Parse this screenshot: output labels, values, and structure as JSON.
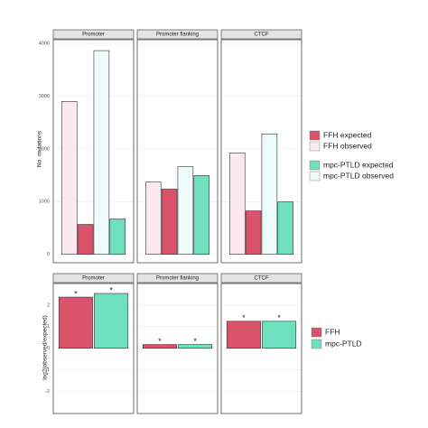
{
  "chart_data": [
    {
      "type": "bar",
      "y_label": "No. mutations",
      "facets": [
        "Promoter",
        "Promoter flanking",
        "CTCF"
      ],
      "series": [
        {
          "name": "FFH expected",
          "color": "#d9546a",
          "values": [
            567,
            1236,
            824
          ]
        },
        {
          "name": "FFH observed",
          "color": "#fce9ef",
          "values": [
            2900,
            1373,
            1923
          ]
        },
        {
          "name": "mpc-PTLD expected",
          "color": "#6fe0be",
          "values": [
            670,
            1494,
            996
          ]
        },
        {
          "name": "mpc-PTLD observed",
          "color": "#eefbfb",
          "values": [
            3863,
            1665,
            2283
          ]
        }
      ],
      "ylim": [
        -160,
        4070
      ],
      "yticks": [
        0,
        1000,
        2000,
        3000,
        4000
      ],
      "grid": true
    },
    {
      "type": "bar",
      "y_label": "log2(observed/expected)",
      "facets": [
        "Promoter",
        "Promoter flanking",
        "CTCF"
      ],
      "series": [
        {
          "name": "FFH",
          "color": "#d9546a",
          "values": [
            2.37,
            0.17,
            1.25
          ],
          "significance": [
            "*",
            "*",
            "*"
          ]
        },
        {
          "name": "mpc-PTLD",
          "color": "#6fe0be",
          "values": [
            2.54,
            0.17,
            1.25
          ],
          "significance": [
            "*",
            "*",
            "*"
          ]
        }
      ],
      "ylim": [
        -3.03,
        3.0
      ],
      "yticks": [
        -2,
        -1,
        0,
        1,
        2
      ],
      "grid": true
    }
  ]
}
